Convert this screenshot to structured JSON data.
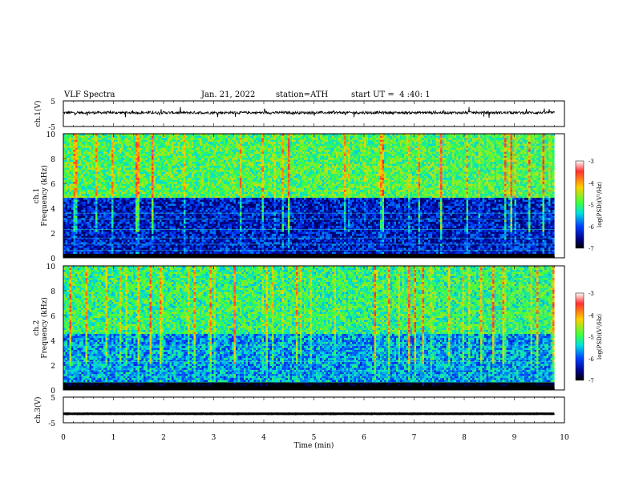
{
  "header": {
    "title": "VLF Spectra",
    "date": "Jan. 21, 2022",
    "station": "station=ATH",
    "start": "start UT =  4 :40: 1"
  },
  "colorbar": {
    "label": "log(PSD)(V²/Hz)",
    "ticks": [
      -3,
      -4,
      -5,
      -6,
      -7
    ],
    "colors": [
      "#ffffff",
      "#ff3030",
      "#ffd000",
      "#40ff40",
      "#00e0e0",
      "#0040ff",
      "#000080",
      "#000000"
    ]
  },
  "chart_data": [
    {
      "type": "line",
      "panel": "ch1",
      "ylabel": "ch.1(V)",
      "yticks": [
        "5",
        "-5"
      ],
      "ylim": [
        -5,
        5
      ],
      "xlim": [
        0,
        10
      ],
      "series": [
        {
          "x": [
            0,
            9.8
          ],
          "values": [
            0.4,
            0.4
          ],
          "noise_amplitude": 1.0
        }
      ]
    },
    {
      "type": "heatmap",
      "panel": "ch1",
      "ylabel_line1": "ch.1",
      "ylabel_line2": "Frequency (kHz)",
      "yticks": [
        "0",
        "2",
        "4",
        "6",
        "8",
        "10"
      ],
      "ylim": [
        0,
        10
      ],
      "xlim": [
        0,
        9.8
      ],
      "zlim": [
        -7,
        -3
      ],
      "bands": [
        {
          "from": 0,
          "to": 0.3,
          "level": -7
        },
        {
          "from": 0.3,
          "to": 4.8,
          "level": -6.2
        },
        {
          "from": 4.8,
          "to": 10,
          "level": -5.1
        }
      ]
    },
    {
      "type": "heatmap",
      "panel": "ch2",
      "ylabel_line1": "ch.2",
      "ylabel_line2": "Frequency (kHz)",
      "yticks": [
        "0",
        "2",
        "4",
        "6",
        "8",
        "10"
      ],
      "ylim": [
        0,
        10
      ],
      "xlim": [
        0,
        9.8
      ],
      "zlim": [
        -7,
        -3
      ],
      "bands": [
        {
          "from": 0,
          "to": 0.5,
          "level": -7
        },
        {
          "from": 0.5,
          "to": 4.5,
          "level": -5.7
        },
        {
          "from": 4.5,
          "to": 10,
          "level": -5.2
        }
      ]
    },
    {
      "type": "line",
      "panel": "ch3",
      "ylabel": "ch.3(V)",
      "yticks": [
        "5",
        "-5"
      ],
      "ylim": [
        -5,
        5
      ],
      "xlim": [
        0,
        10
      ],
      "series": [
        {
          "x": [
            0,
            9.8
          ],
          "values": [
            -1.5,
            -1.5
          ],
          "noise_amplitude": 0.1
        }
      ]
    }
  ],
  "xaxis": {
    "label": "Time (min)",
    "ticks": [
      "0",
      "1",
      "2",
      "3",
      "4",
      "5",
      "6",
      "7",
      "8",
      "9",
      "10"
    ]
  }
}
